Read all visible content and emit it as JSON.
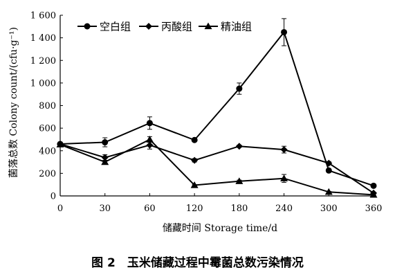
{
  "chart_data": {
    "type": "line",
    "categories": [
      "0",
      "30",
      "60",
      "120",
      "180",
      "240",
      "300",
      "360"
    ],
    "xlabel": "储藏时间 Storage time/d",
    "ylabel": "菌落总数 Colony count/(cfu·g⁻¹)",
    "ylim": [
      0,
      1600
    ],
    "yticks": [
      "0",
      "200",
      "400",
      "600",
      "800",
      "1 000",
      "1 200",
      "1 400",
      "1 600"
    ],
    "grid": false,
    "legend_position": "top-left",
    "series": [
      {
        "name": "空白组",
        "marker": "circle",
        "values": [
          460,
          475,
          645,
          495,
          950,
          1450,
          225,
          90
        ],
        "errors": [
          15,
          40,
          55,
          10,
          50,
          120,
          15,
          10
        ]
      },
      {
        "name": "丙酸组",
        "marker": "diamond",
        "values": [
          460,
          340,
          450,
          315,
          440,
          410,
          290,
          25
        ],
        "errors": [
          10,
          25,
          35,
          15,
          10,
          30,
          15,
          5
        ]
      },
      {
        "name": "精油组",
        "marker": "triangle",
        "values": [
          455,
          300,
          500,
          95,
          130,
          155,
          35,
          10
        ],
        "errors": [
          10,
          15,
          25,
          5,
          10,
          35,
          5,
          3
        ]
      }
    ]
  },
  "caption": "图 2　玉米储藏过程中霉菌总数污染情况"
}
